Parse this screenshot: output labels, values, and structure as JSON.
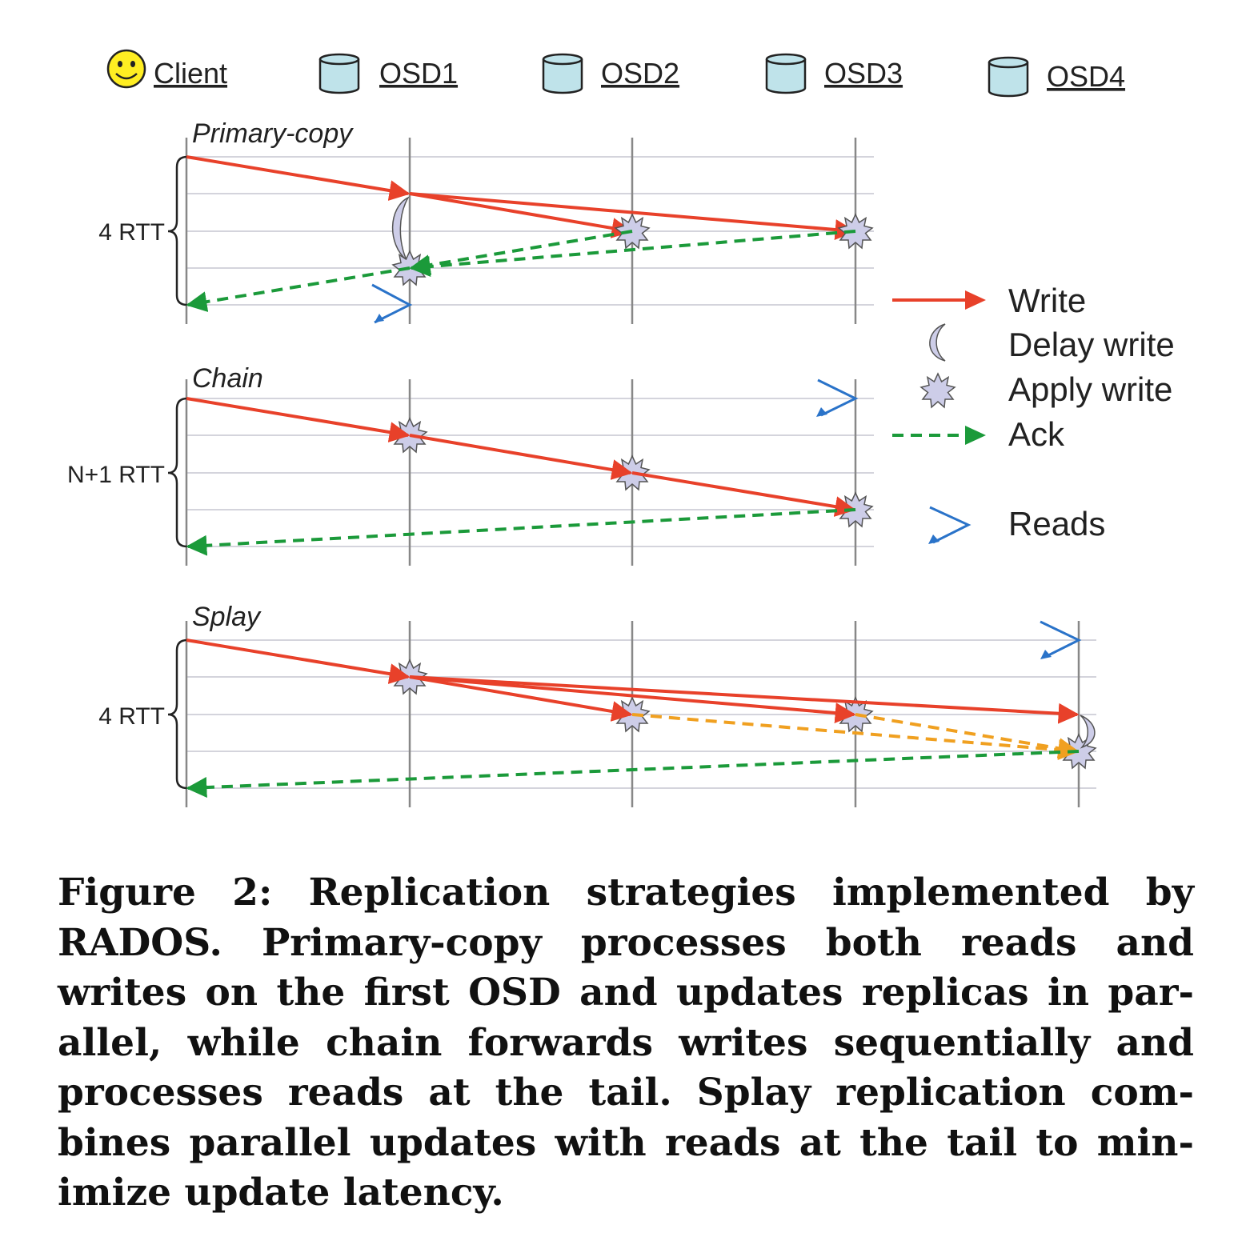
{
  "header": {
    "client": "Client",
    "osds": [
      "OSD1",
      "OSD2",
      "OSD3",
      "OSD4"
    ]
  },
  "sections": {
    "primary": {
      "title": "Primary-copy",
      "latency": "4 RTT"
    },
    "chain": {
      "title": "Chain",
      "latency": "N+1 RTT"
    },
    "splay": {
      "title": "Splay",
      "latency": "4 RTT"
    }
  },
  "legend": {
    "write": "Write",
    "delay": "Delay write",
    "apply": "Apply write",
    "ack": "Ack",
    "reads": "Reads"
  },
  "colors": {
    "write": "#e8412a",
    "ack": "#1b9a3a",
    "forward": "#f0a020",
    "read": "#2a73c9",
    "marker_fill": "#cdcde8",
    "cylinder": "#bfe3ea",
    "smiley": "#ffee22"
  },
  "caption": "Figure 2: Replication strategies implemented by RADOS. Primary-copy processes both reads and writes on the first OSD and updates replicas in par­allel, while chain forwards writes sequentially and processes reads at the tail. Splay replication com­bines parallel updates with reads at the tail to min­imize update latency."
}
